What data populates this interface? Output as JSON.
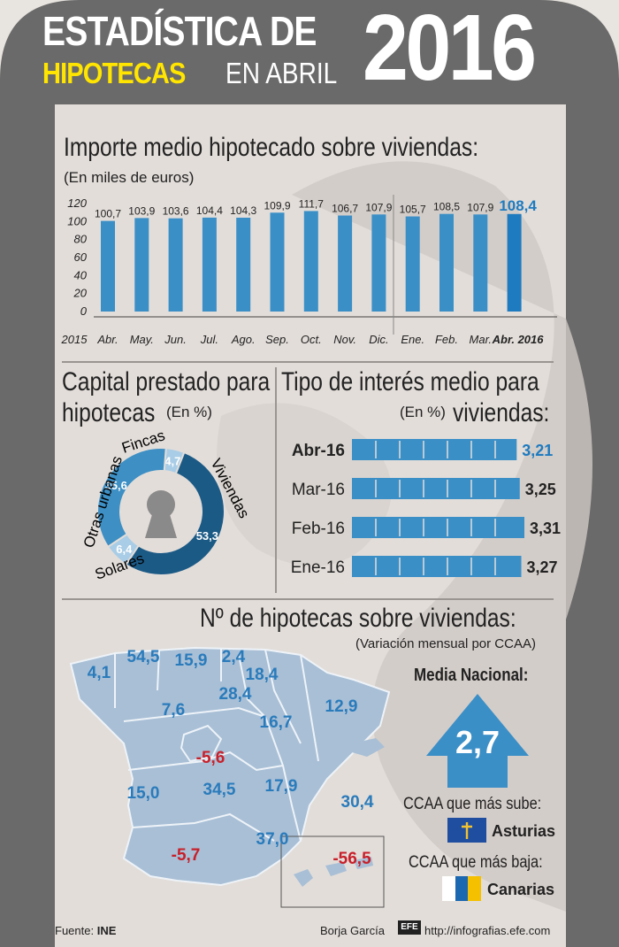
{
  "header": {
    "line1": "ESTADÍSTICA DE",
    "highlight": "HIPOTECAS",
    "line2_rest": "EN ABRIL",
    "year": "2016"
  },
  "section_importe": {
    "title": "Importe medio hipotecado sobre viviendas:",
    "subtitle": "(En miles de euros)"
  },
  "section_capital": {
    "title_l1": "Capital prestado para",
    "title_l2": "hipotecas",
    "unit": "(En %)"
  },
  "section_interes": {
    "title_l1": "Tipo de interés medio para",
    "unit": "(En %)",
    "title_l2": "viviendas:"
  },
  "section_map": {
    "title": "Nº de hipotecas sobre viviendas:",
    "subtitle": "(Variación mensual por CCAA)",
    "media_label": "Media Nacional:",
    "media_value": "2,7",
    "sube_label": "CCAA que más sube:",
    "sube_region": "Asturias",
    "baja_label": "CCAA que más baja:",
    "baja_region": "Canarias",
    "values": [
      "4,1",
      "54,5",
      "15,9",
      "2,4",
      "18,4",
      "28,4",
      "7,6",
      "16,7",
      "12,9",
      "-5,6",
      "15,0",
      "34,5",
      "17,9",
      "30,4",
      "37,0",
      "-5,7",
      "-56,5"
    ]
  },
  "footer": {
    "source_label": "Fuente:",
    "source": "INE",
    "author": "Borja García",
    "url": "http://infografias.efe.com",
    "logo": "EFE"
  },
  "colors": {
    "bar": "#3b8fc7",
    "bar_highlight": "#1f7bbf",
    "donut_dark": "#1c5a86",
    "donut_mid": "#3d8fc4",
    "donut_light": "#a9cde6",
    "map_land": "#a8bfd6",
    "negative": "#c8202a",
    "frame": "#6a6a6a",
    "title_yellow": "#ffe500"
  },
  "chart_data": [
    {
      "type": "bar",
      "title": "Importe medio hipotecado sobre viviendas:",
      "subtitle": "(En miles de euros)",
      "year_prefix": "2015",
      "categories": [
        "Abr.",
        "May.",
        "Jun.",
        "Jul.",
        "Ago.",
        "Sep.",
        "Oct.",
        "Nov.",
        "Dic.",
        "Ene.",
        "Feb.",
        "Mar.",
        "Abr. 2016"
      ],
      "values": [
        100.7,
        103.9,
        103.6,
        104.4,
        104.3,
        109.9,
        111.7,
        106.7,
        107.9,
        105.7,
        108.5,
        107.9,
        108.4
      ],
      "labels": [
        "100,7",
        "103,9",
        "103,6",
        "104,4",
        "104,3",
        "109,9",
        "111,7",
        "106,7",
        "107,9",
        "105,7",
        "108,5",
        "107,9",
        "108,4"
      ],
      "yticks": [
        "120",
        "100",
        "80",
        "60",
        "40",
        "20",
        "0"
      ],
      "ylim": [
        0,
        120
      ]
    },
    {
      "type": "pie",
      "title": "Capital prestado para hipotecas",
      "unit": "(En %)",
      "slices": [
        {
          "name": "Viviendas",
          "value": 53.3,
          "label": "53,3"
        },
        {
          "name": "Solares",
          "value": 6.4,
          "label": "6,4"
        },
        {
          "name": "Otras urbanas",
          "value": 35.6,
          "label": "35,6"
        },
        {
          "name": "Fincas",
          "value": 4.7,
          "label": "4,7"
        }
      ]
    },
    {
      "type": "bar",
      "orientation": "horizontal",
      "title": "Tipo de interés medio para viviendas:",
      "unit": "(En %)",
      "categories": [
        "Abr-16",
        "Mar-16",
        "Feb-16",
        "Ene-16"
      ],
      "values": [
        3.21,
        3.25,
        3.31,
        3.27
      ],
      "labels": [
        "3,21",
        "3,25",
        "3,31",
        "3,27"
      ]
    }
  ]
}
